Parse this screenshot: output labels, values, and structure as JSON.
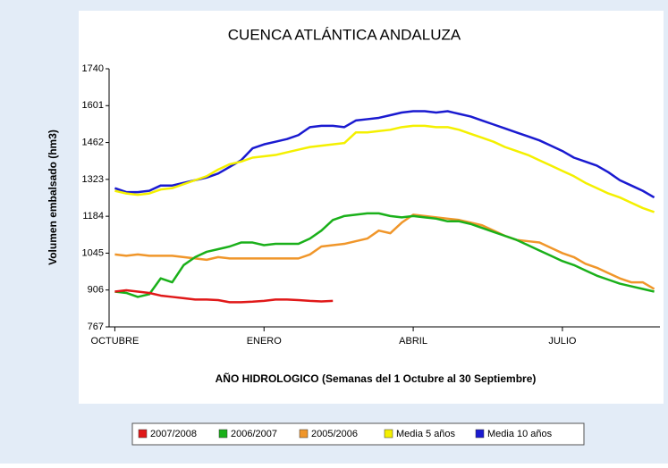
{
  "chart_data": {
    "type": "line",
    "title": "CUENCA ATLÁNTICA ANDALUZA",
    "x_label": "AÑO HIDROLOGICO  (Semanas del 1 Octubre al 30 Septiembre)",
    "y_label": "Volumen  embalsado  (hm3)",
    "x": [
      0,
      1,
      2,
      3,
      4,
      5,
      6,
      7,
      8,
      9,
      10,
      11,
      12,
      13,
      14,
      15,
      16,
      17,
      18,
      19,
      20,
      21,
      22,
      23,
      24,
      25,
      26,
      27,
      28,
      29,
      30,
      31,
      32,
      33,
      34,
      35,
      36,
      37,
      38,
      39,
      40,
      41,
      42,
      43,
      44,
      45,
      46,
      47
    ],
    "xlim": [
      -0.5,
      47.5
    ],
    "xticks": [
      {
        "value": 0,
        "label": "OCTUBRE"
      },
      {
        "value": 13,
        "label": "ENERO"
      },
      {
        "value": 26,
        "label": "ABRIL"
      },
      {
        "value": 39,
        "label": "JULIO"
      }
    ],
    "ylim": [
      767,
      1740
    ],
    "yticks": [
      767,
      906,
      1045,
      1184,
      1323,
      1462,
      1601,
      1740
    ],
    "legend": "bottom",
    "series": [
      {
        "name": "2007/2008",
        "color": "#e01818",
        "values": [
          900,
          905,
          900,
          895,
          885,
          880,
          875,
          870,
          870,
          868,
          860,
          860,
          862,
          865,
          870,
          870,
          868,
          865,
          863,
          865,
          null,
          null,
          null,
          null,
          null,
          null,
          null,
          null,
          null,
          null,
          null,
          null,
          null,
          null,
          null,
          null,
          null,
          null,
          null,
          null,
          null,
          null,
          null,
          null,
          null,
          null,
          null,
          null
        ]
      },
      {
        "name": "2006/2007",
        "color": "#1ab01a",
        "values": [
          900,
          895,
          880,
          890,
          950,
          935,
          1000,
          1030,
          1050,
          1060,
          1070,
          1085,
          1085,
          1075,
          1080,
          1080,
          1080,
          1100,
          1130,
          1170,
          1185,
          1190,
          1195,
          1195,
          1185,
          1180,
          1185,
          1180,
          1175,
          1165,
          1165,
          1155,
          1140,
          1125,
          1110,
          1095,
          1075,
          1055,
          1035,
          1015,
          1000,
          980,
          960,
          945,
          930,
          920,
          910,
          900
        ]
      },
      {
        "name": "2005/2006",
        "color": "#f0962a",
        "values": [
          1040,
          1035,
          1040,
          1035,
          1035,
          1035,
          1030,
          1025,
          1020,
          1030,
          1025,
          1025,
          1025,
          1025,
          1025,
          1025,
          1025,
          1040,
          1070,
          1075,
          1080,
          1090,
          1100,
          1130,
          1120,
          1160,
          1190,
          1185,
          1180,
          1175,
          1170,
          1160,
          1150,
          1130,
          1110,
          1095,
          1090,
          1085,
          1065,
          1045,
          1030,
          1005,
          990,
          970,
          950,
          935,
          935,
          910
        ]
      },
      {
        "name": "Media 5 años",
        "color": "#f4f000",
        "values": [
          1280,
          1270,
          1265,
          1270,
          1285,
          1290,
          1305,
          1320,
          1335,
          1360,
          1380,
          1390,
          1405,
          1410,
          1415,
          1425,
          1435,
          1445,
          1450,
          1455,
          1460,
          1500,
          1500,
          1505,
          1510,
          1520,
          1525,
          1525,
          1520,
          1520,
          1510,
          1495,
          1480,
          1465,
          1445,
          1430,
          1415,
          1395,
          1375,
          1355,
          1335,
          1310,
          1290,
          1270,
          1255,
          1235,
          1215,
          1200
        ]
      },
      {
        "name": "Media 10 años",
        "color": "#1a1ad0",
        "values": [
          1290,
          1275,
          1275,
          1280,
          1300,
          1300,
          1310,
          1320,
          1330,
          1345,
          1370,
          1395,
          1440,
          1455,
          1465,
          1475,
          1490,
          1520,
          1525,
          1525,
          1520,
          1545,
          1550,
          1555,
          1565,
          1575,
          1580,
          1580,
          1575,
          1580,
          1570,
          1560,
          1545,
          1530,
          1515,
          1500,
          1485,
          1470,
          1450,
          1430,
          1405,
          1390,
          1375,
          1350,
          1320,
          1300,
          1280,
          1255
        ]
      }
    ]
  }
}
